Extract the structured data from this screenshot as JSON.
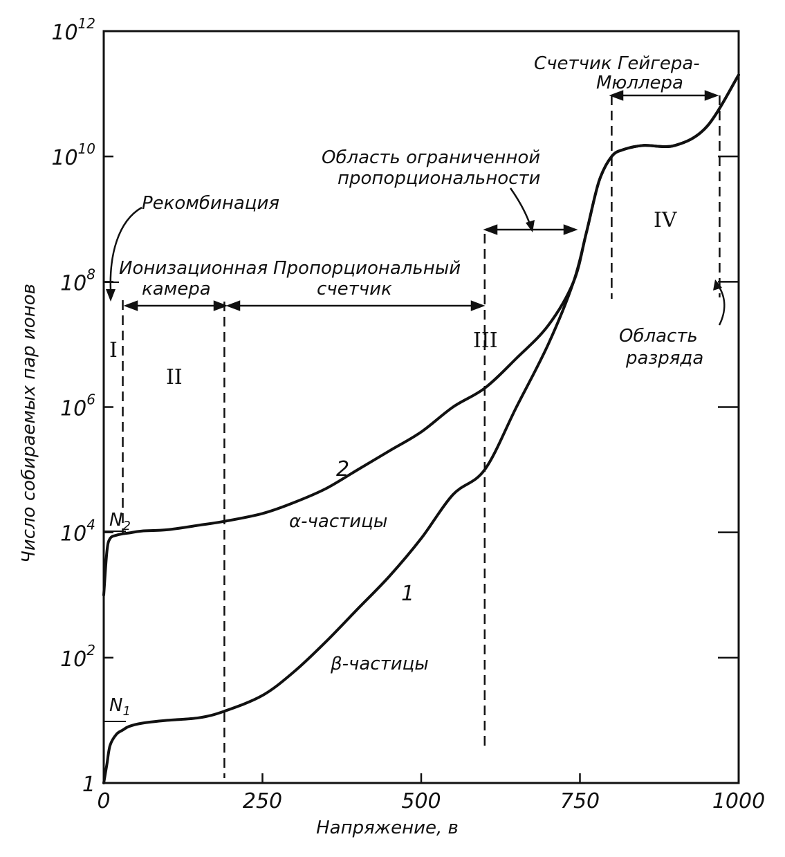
{
  "chart_data": {
    "type": "line",
    "title": "",
    "xlabel": "Напряжение, в",
    "ylabel": "Число собираемых пар ионов",
    "xlim": [
      0,
      1000
    ],
    "ylim_log10": [
      0,
      12
    ],
    "y_scale": "log",
    "grid": false,
    "x_ticks": [
      {
        "value": 0,
        "label": "0"
      },
      {
        "value": 250,
        "label": "250"
      },
      {
        "value": 500,
        "label": "500"
      },
      {
        "value": 750,
        "label": "750"
      },
      {
        "value": 1000,
        "label": "1000"
      }
    ],
    "y_ticks": [
      {
        "log": 0,
        "label": "1",
        "base": "",
        "exp": ""
      },
      {
        "log": 2,
        "label": "",
        "base": "10",
        "exp": "2"
      },
      {
        "log": 4,
        "label": "",
        "base": "10",
        "exp": "4"
      },
      {
        "log": 6,
        "label": "",
        "base": "10",
        "exp": "6"
      },
      {
        "log": 8,
        "label": "",
        "base": "10",
        "exp": "8"
      },
      {
        "log": 10,
        "label": "",
        "base": "10",
        "exp": "10"
      },
      {
        "log": 12,
        "label": "",
        "base": "10",
        "exp": "12"
      }
    ],
    "series": [
      {
        "name": "2",
        "particle_label": "α-частицы",
        "x": [
          0,
          5,
          10,
          20,
          30,
          40,
          60,
          100,
          150,
          190,
          250,
          300,
          350,
          400,
          450,
          500,
          550,
          600,
          650,
          700,
          740,
          760,
          780,
          800,
          820,
          850,
          900,
          950,
          1000
        ],
        "y": [
          1000,
          5000,
          8000,
          9000,
          9500,
          9800,
          10500,
          11000,
          13000,
          15000,
          20000,
          30000,
          50000,
          100000,
          200000,
          400000,
          1000000,
          2000000,
          6000000,
          20000000,
          100000000,
          600000000,
          4000000000,
          10000000000,
          13000000000,
          15000000000,
          15000000000,
          30000000000,
          200000000000
        ]
      },
      {
        "name": "1",
        "particle_label": "β-частицы",
        "x": [
          0,
          5,
          10,
          20,
          30,
          40,
          60,
          100,
          150,
          190,
          250,
          300,
          350,
          400,
          450,
          500,
          550,
          600,
          650,
          700,
          740,
          760,
          780,
          800,
          820,
          850,
          900,
          950,
          1000
        ],
        "y": [
          1,
          2,
          4,
          6,
          7,
          8,
          9,
          10,
          11,
          14,
          25,
          60,
          180,
          600,
          2000,
          8000,
          40000,
          100000,
          1000000,
          10000000,
          100000000,
          600000000,
          4000000000,
          10000000000,
          13000000000,
          15000000000,
          15000000000,
          30000000000,
          200000000000
        ]
      }
    ],
    "annotations": {
      "recombination": "Рекомбинация",
      "ion_chamber_line1": "Ионизационная",
      "ion_chamber_line2": "камера",
      "proportional_line1": "Пропорциональный",
      "proportional_line2": "счетчик",
      "limited_prop_line1": "Область ограниченной",
      "limited_prop_line2": "пропорциональности",
      "geiger_line1": "Счетчик Гейгера-",
      "geiger_line2": "Мюллера",
      "discharge_line1": "Область",
      "discharge_line2": "разряда",
      "region_I": "I",
      "region_II": "II",
      "region_III": "III",
      "region_IV": "IV",
      "n2_label": "N",
      "n2_sub": "2",
      "n1_label": "N",
      "n1_sub": "1"
    },
    "region_boundaries_volts": [
      30,
      190,
      600,
      800,
      970
    ]
  },
  "colors": {
    "ink": "#111111",
    "background": "#ffffff"
  }
}
